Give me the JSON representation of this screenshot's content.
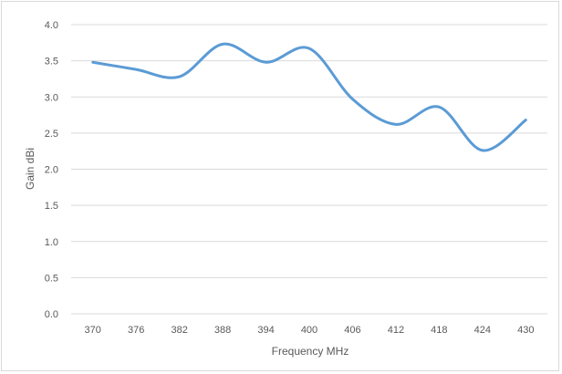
{
  "chart_data": {
    "type": "line",
    "title": "",
    "xlabel": "Frequency MHz",
    "ylabel": "Gain dBi",
    "x": [
      370,
      376,
      382,
      388,
      394,
      400,
      406,
      412,
      418,
      424,
      430
    ],
    "x_tick_labels": [
      "370",
      "376",
      "382",
      "388",
      "394",
      "400",
      "406",
      "412",
      "418",
      "424",
      "430"
    ],
    "y_tick_labels": [
      "0.0",
      "0.5",
      "1.0",
      "1.5",
      "2.0",
      "2.5",
      "3.0",
      "3.5",
      "4.0"
    ],
    "y_ticks": [
      0,
      0.5,
      1.0,
      1.5,
      2.0,
      2.5,
      3.0,
      3.5,
      4.0
    ],
    "ylim": [
      0,
      4.0
    ],
    "grid": "horizontal",
    "legend": "none",
    "smooth": true,
    "series": [
      {
        "color": "#5b9bd5",
        "values": [
          3.48,
          3.38,
          3.28,
          3.73,
          3.48,
          3.67,
          2.97,
          2.62,
          2.86,
          2.26,
          2.68
        ]
      }
    ],
    "colors": {
      "grid": "#d9d9d9",
      "text": "#595959",
      "line": "#5b9bd5"
    }
  }
}
